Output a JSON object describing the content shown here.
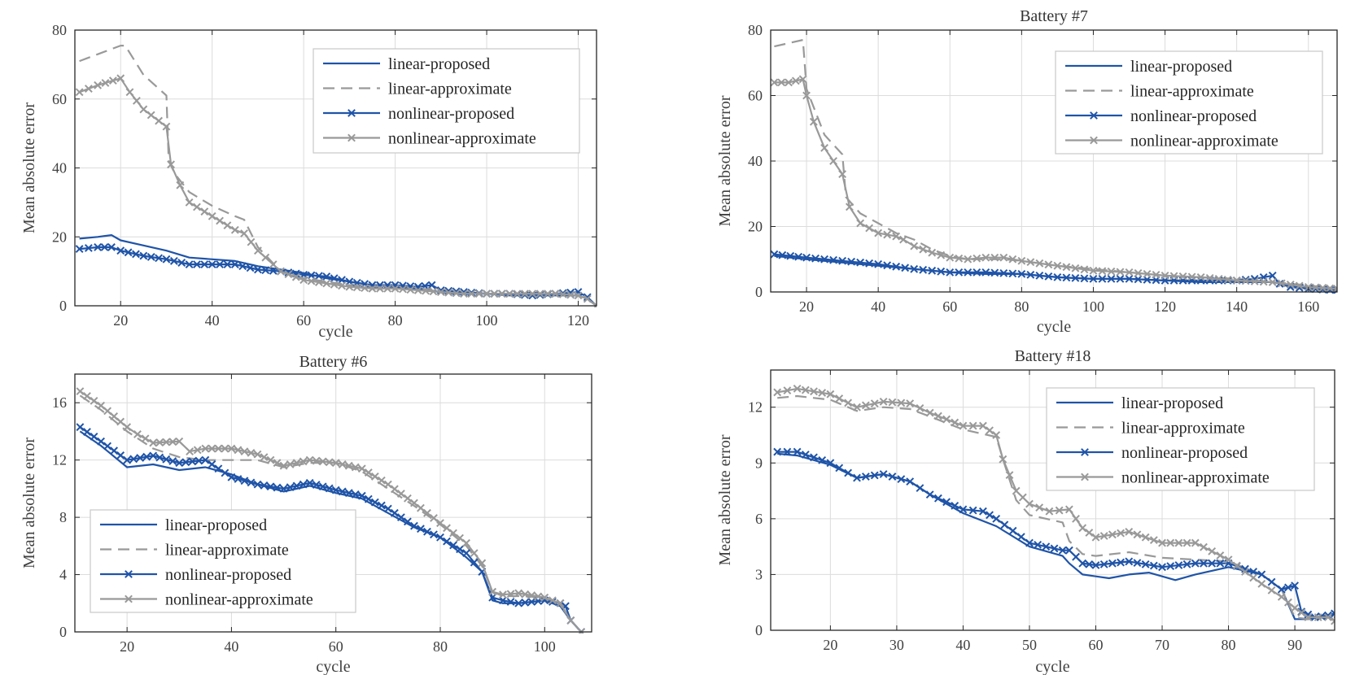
{
  "colors": {
    "proposed": "#1f54a8",
    "approximate": "#999999",
    "axis": "#262626",
    "grid": "#dcdcdc"
  },
  "chart_data": [
    {
      "type": "line",
      "title": "",
      "xlabel": "cycle",
      "ylabel": "Mean absolute error",
      "xlim": [
        10,
        124
      ],
      "ylim": [
        0,
        80
      ],
      "xticks": [
        20,
        40,
        60,
        80,
        100,
        120
      ],
      "yticks": [
        0,
        20,
        40,
        60,
        80
      ],
      "grid": true,
      "legend": "top-right",
      "series": [
        {
          "name": "linear-proposed",
          "style": "proposed-solid",
          "x": [
            11,
            15,
            18,
            20,
            25,
            30,
            35,
            40,
            45,
            50,
            55,
            60,
            65,
            70,
            75,
            80,
            85,
            90,
            95,
            100,
            105,
            110,
            115,
            120,
            122,
            124
          ],
          "y": [
            19.5,
            20,
            20.5,
            19,
            17.5,
            16,
            14,
            13.5,
            13,
            11.5,
            10.5,
            9.5,
            8,
            7,
            6,
            5.5,
            5,
            4,
            3.5,
            3.5,
            3,
            3,
            3,
            3,
            2,
            0
          ]
        },
        {
          "name": "linear-approximate",
          "style": "approximate-dashed",
          "x": [
            11,
            15,
            20,
            21,
            25,
            30,
            30.5,
            32,
            35,
            40,
            45,
            47,
            50,
            55,
            60,
            65,
            70,
            75,
            80,
            85,
            90,
            95,
            100,
            105,
            110,
            115,
            120,
            122,
            124
          ],
          "y": [
            71,
            73,
            75.5,
            75.5,
            67,
            61,
            42,
            38,
            33,
            29,
            26,
            25,
            17,
            10,
            8,
            7,
            6,
            5.5,
            5,
            5,
            4.5,
            4,
            3.5,
            3.5,
            3.5,
            3.5,
            3,
            2,
            0
          ]
        },
        {
          "name": "nonlinear-proposed",
          "style": "proposed-cross",
          "x": [
            11,
            15,
            18,
            20,
            25,
            30,
            35,
            40,
            45,
            50,
            55,
            60,
            65,
            70,
            75,
            80,
            85,
            88,
            90,
            95,
            100,
            105,
            110,
            115,
            120,
            122,
            124
          ],
          "y": [
            16.5,
            17,
            17,
            16,
            14.5,
            13.5,
            12,
            12,
            12,
            10.5,
            10,
            9,
            8.5,
            7,
            6,
            6,
            5.5,
            6,
            4.5,
            4,
            3.5,
            3.5,
            3,
            3.5,
            4,
            2.5,
            0
          ]
        },
        {
          "name": "nonlinear-approximate",
          "style": "approximate-cross",
          "x": [
            11,
            15,
            20,
            22,
            25,
            30,
            31,
            33,
            35,
            40,
            45,
            47,
            50,
            55,
            60,
            65,
            70,
            75,
            80,
            85,
            90,
            95,
            100,
            105,
            110,
            115,
            120,
            122,
            124
          ],
          "y": [
            62,
            64,
            66,
            62,
            57,
            52,
            41,
            35,
            30,
            26,
            22,
            21,
            16,
            10,
            7.5,
            6.5,
            5.5,
            5,
            5,
            4.5,
            4,
            3.5,
            3.5,
            3.5,
            3.5,
            3.5,
            3,
            2,
            0
          ]
        }
      ]
    },
    {
      "type": "line",
      "title": "Battery #7",
      "xlabel": "cycle",
      "ylabel": "Mean absolute error",
      "xlim": [
        10,
        168
      ],
      "ylim": [
        0,
        80
      ],
      "xticks": [
        20,
        40,
        60,
        80,
        100,
        120,
        140,
        160
      ],
      "yticks": [
        0,
        20,
        40,
        60,
        80
      ],
      "grid": true,
      "legend": "top-right",
      "series": [
        {
          "name": "linear-proposed",
          "style": "proposed-solid",
          "x": [
            11,
            20,
            30,
            40,
            50,
            60,
            70,
            80,
            90,
            100,
            110,
            120,
            130,
            140,
            150,
            160,
            168
          ],
          "y": [
            11,
            10,
            9,
            8,
            7,
            6,
            5.5,
            5.5,
            4.5,
            4,
            4,
            3.5,
            3,
            3,
            3,
            1,
            0.5
          ]
        },
        {
          "name": "linear-approximate",
          "style": "approximate-dashed",
          "x": [
            11,
            15,
            19,
            20,
            25,
            30,
            31,
            35,
            40,
            45,
            50,
            55,
            60,
            65,
            70,
            75,
            80,
            90,
            100,
            110,
            120,
            130,
            140,
            150,
            160,
            168
          ],
          "y": [
            75,
            76,
            77,
            62,
            48,
            42,
            29,
            24,
            21,
            18,
            16,
            13,
            11,
            10,
            10,
            10,
            9.5,
            8,
            7,
            6,
            5,
            4.5,
            4,
            3,
            2,
            1
          ]
        },
        {
          "name": "nonlinear-proposed",
          "style": "proposed-cross",
          "x": [
            11,
            20,
            30,
            40,
            50,
            60,
            70,
            80,
            90,
            100,
            110,
            120,
            130,
            140,
            145,
            150,
            152,
            155,
            160,
            168
          ],
          "y": [
            11.5,
            10.5,
            9.5,
            8.5,
            7,
            6,
            6,
            5.5,
            4.5,
            4,
            4,
            3.5,
            3.5,
            3.5,
            4,
            5,
            2.5,
            1.5,
            1,
            0.5
          ]
        },
        {
          "name": "nonlinear-approximate",
          "style": "approximate-cross",
          "x": [
            11,
            15,
            19,
            20,
            22,
            25,
            30,
            32,
            35,
            40,
            45,
            47,
            50,
            55,
            60,
            65,
            70,
            75,
            80,
            90,
            100,
            110,
            120,
            130,
            140,
            150,
            160,
            168
          ],
          "y": [
            64,
            64,
            65,
            60,
            52,
            44,
            36,
            26,
            21,
            18,
            17,
            16,
            14,
            12,
            10.5,
            10,
            10.5,
            10.5,
            9.5,
            8,
            6.5,
            6,
            5,
            4.5,
            3.5,
            3,
            1.5,
            1
          ]
        }
      ]
    },
    {
      "type": "line",
      "title": "Battery #6",
      "xlabel": "cycle",
      "ylabel": "Mean absolute error",
      "xlim": [
        10,
        109
      ],
      "ylim": [
        0,
        18
      ],
      "xticks": [
        20,
        40,
        60,
        80,
        100
      ],
      "yticks": [
        0,
        4,
        8,
        12,
        16
      ],
      "grid": true,
      "legend": "bottom-left",
      "series": [
        {
          "name": "linear-proposed",
          "style": "proposed-solid",
          "x": [
            11,
            15,
            20,
            25,
            30,
            35,
            40,
            45,
            50,
            55,
            60,
            65,
            70,
            75,
            80,
            85,
            88,
            90,
            92,
            95,
            100,
            103,
            105,
            107
          ],
          "y": [
            14,
            13,
            11.5,
            11.7,
            11.3,
            11.5,
            11,
            10.3,
            9.8,
            10.2,
            9.7,
            9.3,
            8.3,
            7.3,
            6.6,
            5.2,
            4.2,
            2.2,
            2,
            2,
            2.2,
            1.8,
            0.8,
            0
          ]
        },
        {
          "name": "linear-approximate",
          "style": "approximate-dashed",
          "x": [
            11,
            15,
            20,
            25,
            30,
            35,
            40,
            45,
            50,
            55,
            60,
            65,
            70,
            75,
            80,
            85,
            88,
            90,
            92,
            95,
            100,
            103,
            105,
            107
          ],
          "y": [
            16.5,
            15.5,
            14,
            12.8,
            12.2,
            12,
            12,
            12,
            11.5,
            11.8,
            11.8,
            11.2,
            10,
            8.8,
            7.5,
            6,
            4.6,
            2.8,
            2.5,
            2.5,
            2.4,
            1.9,
            0.8,
            0
          ]
        },
        {
          "name": "nonlinear-proposed",
          "style": "proposed-cross",
          "x": [
            11,
            15,
            20,
            25,
            30,
            35,
            40,
            45,
            50,
            55,
            60,
            65,
            70,
            75,
            80,
            85,
            88,
            90,
            92,
            95,
            100,
            103,
            104,
            105,
            107
          ],
          "y": [
            14.3,
            13.3,
            12,
            12.3,
            11.8,
            12,
            10.8,
            10.3,
            10,
            10.4,
            9.9,
            9.5,
            8.6,
            7.4,
            6.6,
            5.5,
            4.2,
            2.4,
            2.2,
            2,
            2.2,
            2,
            1.8,
            0.8,
            0
          ]
        },
        {
          "name": "nonlinear-approximate",
          "style": "approximate-cross",
          "x": [
            11,
            15,
            20,
            22,
            25,
            30,
            32,
            35,
            40,
            45,
            50,
            55,
            60,
            65,
            70,
            75,
            80,
            85,
            88,
            90,
            92,
            95,
            100,
            103,
            105,
            107
          ],
          "y": [
            16.8,
            15.8,
            14.3,
            13.8,
            13.2,
            13.3,
            12.6,
            12.8,
            12.8,
            12.4,
            11.6,
            12,
            11.8,
            11.4,
            10.3,
            9,
            7.6,
            6.2,
            4.8,
            2.8,
            2.6,
            2.7,
            2.4,
            2,
            0.8,
            0
          ]
        }
      ]
    },
    {
      "type": "line",
      "title": "Battery #18",
      "xlabel": "cycle",
      "ylabel": "Mean absolute error",
      "xlim": [
        11,
        96
      ],
      "ylim": [
        0,
        14
      ],
      "xticks": [
        20,
        30,
        40,
        50,
        60,
        70,
        80,
        90
      ],
      "yticks": [
        0,
        3,
        6,
        9,
        12
      ],
      "grid": true,
      "legend": "top-right",
      "series": [
        {
          "name": "linear-proposed",
          "style": "proposed-solid",
          "x": [
            12,
            15,
            20,
            24,
            28,
            32,
            35,
            40,
            45,
            50,
            55,
            56,
            58,
            60,
            62,
            65,
            68,
            72,
            75,
            80,
            85,
            88,
            90,
            92,
            95,
            96
          ],
          "y": [
            9.5,
            9.4,
            8.9,
            8.2,
            8.4,
            8,
            7.3,
            6.3,
            5.6,
            4.5,
            4,
            3.6,
            3,
            2.9,
            2.8,
            3,
            3.1,
            2.7,
            3,
            3.4,
            3,
            2.2,
            0.6,
            0.6,
            0.8,
            0.9
          ]
        },
        {
          "name": "linear-approximate",
          "style": "approximate-dashed",
          "x": [
            12,
            15,
            20,
            24,
            28,
            32,
            35,
            40,
            45,
            46,
            48,
            50,
            55,
            56,
            58,
            60,
            65,
            70,
            75,
            80,
            85,
            88,
            90,
            92,
            95,
            96
          ],
          "y": [
            12.5,
            12.6,
            12.4,
            11.8,
            12,
            11.9,
            11.5,
            10.8,
            10.4,
            9.2,
            7,
            6.2,
            5.8,
            4.8,
            4.1,
            4,
            4.2,
            3.9,
            3.8,
            3.7,
            3,
            2.2,
            0.7,
            0.6,
            0.7,
            0.7
          ]
        },
        {
          "name": "nonlinear-proposed",
          "style": "proposed-cross",
          "x": [
            12,
            15,
            20,
            24,
            28,
            32,
            35,
            40,
            43,
            45,
            50,
            55,
            56,
            58,
            60,
            65,
            70,
            75,
            80,
            85,
            88,
            90,
            91,
            93,
            95,
            96
          ],
          "y": [
            9.6,
            9.6,
            9,
            8.2,
            8.4,
            8,
            7.3,
            6.5,
            6.4,
            6,
            4.7,
            4.3,
            4.3,
            3.6,
            3.5,
            3.7,
            3.4,
            3.6,
            3.6,
            3,
            2.2,
            2.4,
            1,
            0.7,
            0.8,
            0.9
          ]
        },
        {
          "name": "nonlinear-approximate",
          "style": "approximate-cross",
          "x": [
            12,
            15,
            20,
            24,
            28,
            32,
            35,
            40,
            43,
            45,
            46,
            48,
            50,
            53,
            56,
            58,
            60,
            65,
            70,
            75,
            80,
            85,
            88,
            90,
            92,
            95,
            96
          ],
          "y": [
            12.8,
            13,
            12.7,
            12,
            12.3,
            12.2,
            11.7,
            11,
            11,
            10.5,
            9.2,
            7.5,
            6.8,
            6.4,
            6.5,
            5.5,
            5,
            5.3,
            4.7,
            4.7,
            3.8,
            2.5,
            1.8,
            1.2,
            0.7,
            0.7,
            0.5
          ]
        }
      ]
    }
  ]
}
